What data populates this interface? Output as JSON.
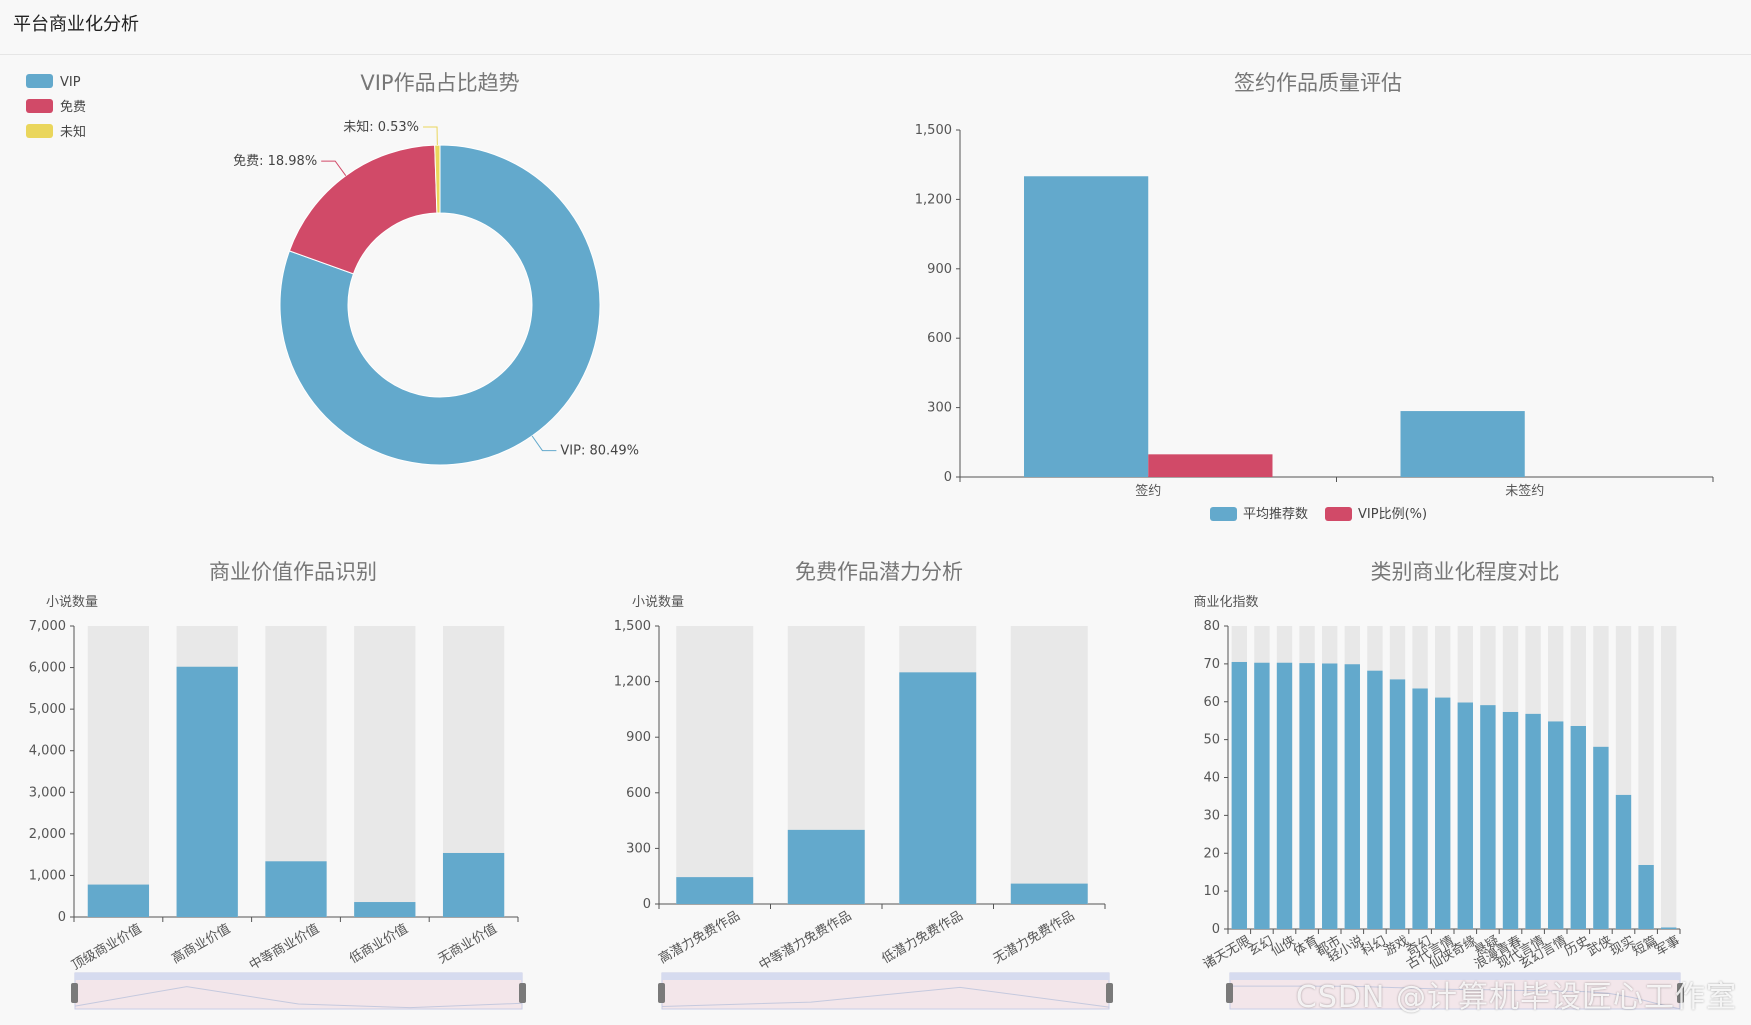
{
  "page": {
    "title": "平台商业化分析"
  },
  "colors": {
    "blue": "#63a9cc",
    "red": "#d14a68",
    "yellow": "#ead65c",
    "bg_bar": "#e8e8e8",
    "axis": "#555555",
    "slider_fill": "#f3e6ea",
    "slider_border": "#c9cde6"
  },
  "watermark": "CSDN @计算机毕设匠心工作室",
  "chart_data": [
    {
      "id": "vip_ratio",
      "type": "pie",
      "title": "VIP作品占比趋势",
      "legend": [
        "VIP",
        "免费",
        "未知"
      ],
      "legend_position": "top-left",
      "slices": [
        {
          "name": "VIP",
          "value": 80.49,
          "label": "VIP: 80.49%"
        },
        {
          "name": "免费",
          "value": 18.98,
          "label": "免费: 18.98%"
        },
        {
          "name": "未知",
          "value": 0.53,
          "label": "未知: 0.53%"
        }
      ]
    },
    {
      "id": "signed_quality",
      "type": "bar",
      "title": "签约作品质量评估",
      "categories": [
        "签约",
        "未签约"
      ],
      "series": [
        {
          "name": "平均推荐数",
          "values": [
            1300,
            285
          ]
        },
        {
          "name": "VIP比例(%)",
          "values": [
            98,
            0
          ]
        }
      ],
      "ylim": [
        0,
        1500
      ],
      "yticks": [
        "0",
        "300",
        "600",
        "900",
        "1,200",
        "1,500"
      ],
      "legend_position": "bottom"
    },
    {
      "id": "commercial_value",
      "type": "bar",
      "title": "商业价值作品识别",
      "ylabel": "小说数量",
      "categories": [
        "顶级商业价值",
        "高商业价值",
        "中等商业价值",
        "低商业价值",
        "无商业价值"
      ],
      "values": [
        780,
        6020,
        1340,
        360,
        1540
      ],
      "ylim": [
        0,
        7000
      ],
      "yticks": [
        "0",
        "1,000",
        "2,000",
        "3,000",
        "4,000",
        "5,000",
        "6,000",
        "7,000"
      ],
      "background_bars": true,
      "data_zoom": true
    },
    {
      "id": "free_potential",
      "type": "bar",
      "title": "免费作品潜力分析",
      "ylabel": "小说数量",
      "categories": [
        "高潜力免费作品",
        "中等潜力免费作品",
        "低潜力免费作品",
        "无潜力免费作品"
      ],
      "values": [
        145,
        400,
        1250,
        110
      ],
      "ylim": [
        0,
        1500
      ],
      "yticks": [
        "0",
        "300",
        "600",
        "900",
        "1,200",
        "1,500"
      ],
      "background_bars": true,
      "data_zoom": true
    },
    {
      "id": "category_commercial",
      "type": "bar",
      "title": "类别商业化程度对比",
      "ylabel": "商业化指数",
      "categories": [
        "诸天无限",
        "玄幻",
        "仙侠",
        "体育",
        "都市",
        "轻小说",
        "科幻",
        "游戏",
        "奇幻",
        "古代言情",
        "仙侠奇缘",
        "悬疑",
        "浪漫青春",
        "现代言情",
        "玄幻言情",
        "历史",
        "武侠",
        "现实",
        "短篇",
        "军事"
      ],
      "values": [
        70.5,
        70.3,
        70.3,
        70.2,
        70.1,
        69.9,
        68.2,
        65.9,
        63.5,
        61.1,
        59.8,
        59.1,
        57.3,
        56.8,
        54.8,
        53.6,
        48.1,
        35.4,
        16.9,
        0.4
      ],
      "ylim": [
        0,
        80
      ],
      "yticks": [
        "0",
        "10",
        "20",
        "30",
        "40",
        "50",
        "60",
        "70",
        "80"
      ],
      "background_bars": true,
      "data_zoom": true
    }
  ]
}
